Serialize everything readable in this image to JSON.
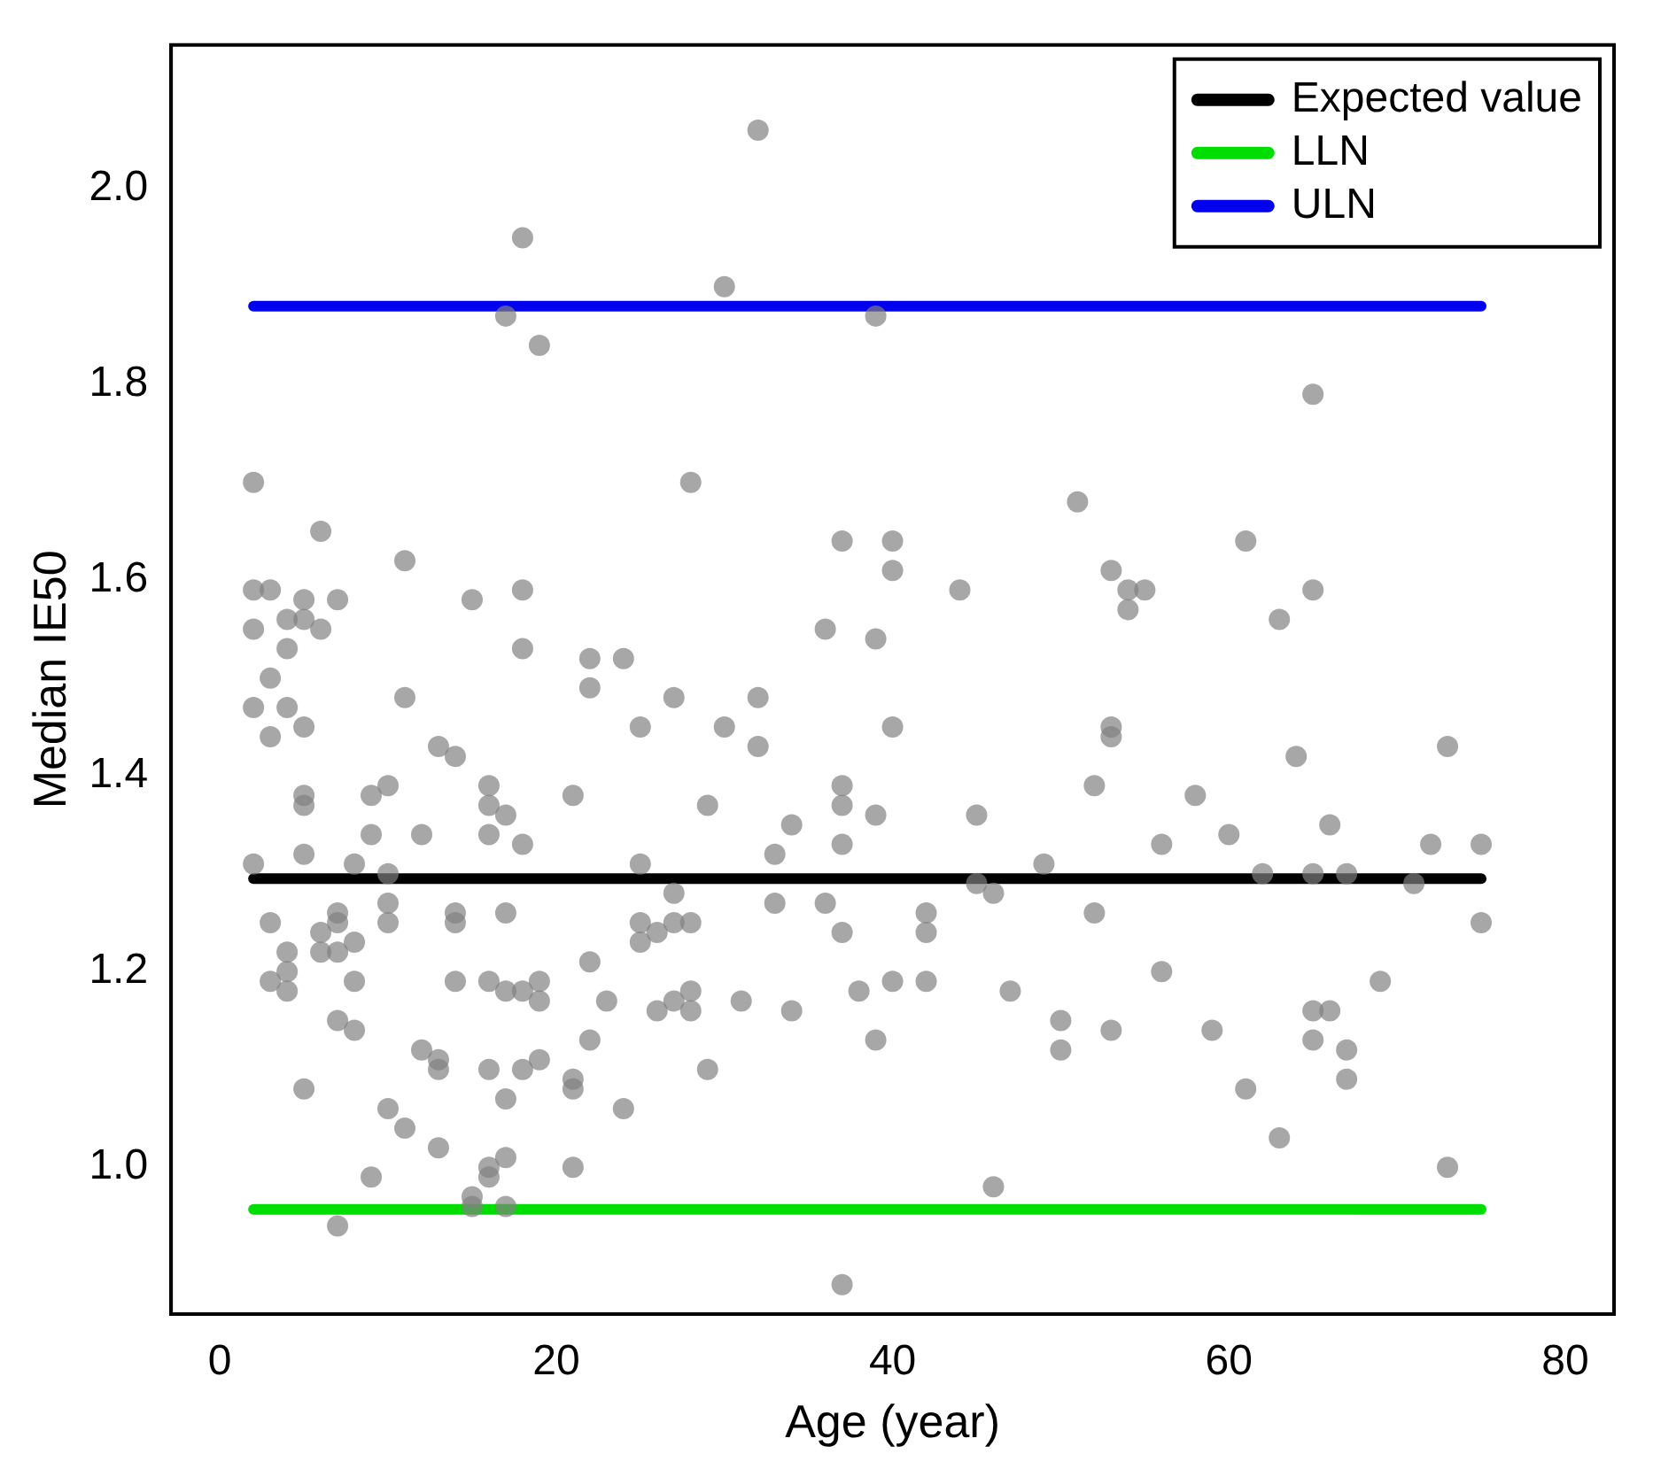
{
  "chart_data": {
    "type": "scatter",
    "xlabel": "Age (year)",
    "ylabel": "Median IE50",
    "xlim": [
      -2.9,
      82.9
    ],
    "ylim": [
      0.85,
      2.147
    ],
    "xticks": [
      0,
      20,
      40,
      60,
      80
    ],
    "yticks": [
      {
        "value": 1,
        "label": "1.0"
      },
      {
        "value": 1.2,
        "label": "1.2"
      },
      {
        "value": 1.4,
        "label": "1.4"
      },
      {
        "value": 1.6,
        "label": "1.6"
      },
      {
        "value": 1.8,
        "label": "1.8"
      },
      {
        "value": 2,
        "label": "2.0"
      }
    ],
    "grid": false,
    "legend": "top right",
    "marker": "circle",
    "series": [
      {
        "color": "#808080",
        "x": [
          2,
          2,
          2,
          2,
          2,
          3,
          3,
          3,
          3,
          3,
          4,
          4,
          4,
          4,
          4,
          4,
          5,
          5,
          5,
          5,
          5,
          5,
          5,
          6,
          6,
          6,
          6,
          7,
          7,
          7,
          7,
          7,
          7,
          8,
          8,
          8,
          8,
          9,
          9,
          9,
          10,
          10,
          10,
          10,
          10,
          11,
          11,
          11,
          12,
          12,
          13,
          13,
          13,
          13,
          14,
          14,
          14,
          14,
          15,
          15,
          15,
          16,
          16,
          16,
          16,
          16,
          16,
          16,
          17,
          17,
          17,
          17,
          17,
          17,
          17,
          18,
          18,
          18,
          18,
          18,
          18,
          19,
          19,
          19,
          19,
          21,
          21,
          21,
          21,
          22,
          22,
          22,
          22,
          23,
          24,
          24,
          25,
          25,
          25,
          25,
          26,
          26,
          27,
          27,
          27,
          27,
          28,
          28,
          28,
          28,
          29,
          29,
          30,
          30,
          31,
          32,
          32,
          32,
          33,
          33,
          34,
          34,
          36,
          36,
          37,
          37,
          37,
          37,
          37,
          37,
          38,
          39,
          39,
          39,
          39,
          40,
          40,
          40,
          40,
          42,
          42,
          42,
          44,
          45,
          45,
          46,
          46,
          47,
          49,
          50,
          50,
          51,
          52,
          52,
          53,
          53,
          53,
          53,
          54,
          54,
          55,
          56,
          56,
          58,
          59,
          60,
          61,
          61,
          62,
          63,
          63,
          64,
          65,
          65,
          65,
          65,
          65,
          66,
          66,
          67,
          67,
          67,
          69,
          71,
          72,
          73,
          73,
          75,
          75
        ],
        "values": [
          1.7,
          1.59,
          1.55,
          1.47,
          1.31,
          1.59,
          1.5,
          1.44,
          1.25,
          1.19,
          1.53,
          1.56,
          1.47,
          1.22,
          1.18,
          1.2,
          1.58,
          1.56,
          1.45,
          1.38,
          1.37,
          1.32,
          1.08,
          1.65,
          1.55,
          1.24,
          1.22,
          1.58,
          1.25,
          1.26,
          1.22,
          1.15,
          0.94,
          1.31,
          1.23,
          1.19,
          1.14,
          1.38,
          1.34,
          0.99,
          1.39,
          1.3,
          1.27,
          1.25,
          1.06,
          1.62,
          1.48,
          1.04,
          1.34,
          1.12,
          1.43,
          1.11,
          1.1,
          1.02,
          1.42,
          1.26,
          1.25,
          1.19,
          1.58,
          0.96,
          0.97,
          1.39,
          1.37,
          1.34,
          1.19,
          1.1,
          1.0,
          0.99,
          1.87,
          1.36,
          1.26,
          1.18,
          1.07,
          1.01,
          0.96,
          1.95,
          1.59,
          1.53,
          1.33,
          1.18,
          1.1,
          1.84,
          1.19,
          1.17,
          1.11,
          1.38,
          1.09,
          1.08,
          1.0,
          1.52,
          1.49,
          1.21,
          1.13,
          1.17,
          1.52,
          1.06,
          1.45,
          1.31,
          1.25,
          1.23,
          1.24,
          1.16,
          1.48,
          1.28,
          1.25,
          1.17,
          1.7,
          1.25,
          1.18,
          1.16,
          1.37,
          1.1,
          1.9,
          1.45,
          1.17,
          2.06,
          1.48,
          1.43,
          1.32,
          1.27,
          1.35,
          1.16,
          1.55,
          1.27,
          1.64,
          1.39,
          1.37,
          1.33,
          1.24,
          0.88,
          1.18,
          1.87,
          1.54,
          1.36,
          1.13,
          1.64,
          1.61,
          1.45,
          1.19,
          1.26,
          1.24,
          1.19,
          1.59,
          1.36,
          1.29,
          1.28,
          0.98,
          1.18,
          1.31,
          1.15,
          1.12,
          1.68,
          1.39,
          1.26,
          1.61,
          1.45,
          1.44,
          1.14,
          1.59,
          1.57,
          1.59,
          1.33,
          1.2,
          1.38,
          1.14,
          1.34,
          1.64,
          1.08,
          1.3,
          1.56,
          1.03,
          1.42,
          1.79,
          1.59,
          1.3,
          1.16,
          1.13,
          1.35,
          1.16,
          1.3,
          1.12,
          1.09,
          1.19,
          1.29,
          1.33,
          1.43,
          1.0,
          1.33,
          1.25
        ]
      },
      {
        "type": "line",
        "name": "Expected value",
        "color": "#000000",
        "marker": "none",
        "line_style": "solid",
        "x": [
          2,
          75
        ],
        "values": [
          1.295,
          1.295
        ]
      },
      {
        "type": "line",
        "name": "LLN",
        "color": "#00dd00",
        "marker": "none",
        "line_style": "solid",
        "x": [
          2,
          75
        ],
        "values": [
          0.957,
          0.957
        ]
      },
      {
        "type": "line",
        "name": "ULN",
        "color": "#0000ee",
        "marker": "none",
        "line_style": "solid",
        "x": [
          2,
          75
        ],
        "values": [
          1.88,
          1.88
        ]
      }
    ]
  }
}
